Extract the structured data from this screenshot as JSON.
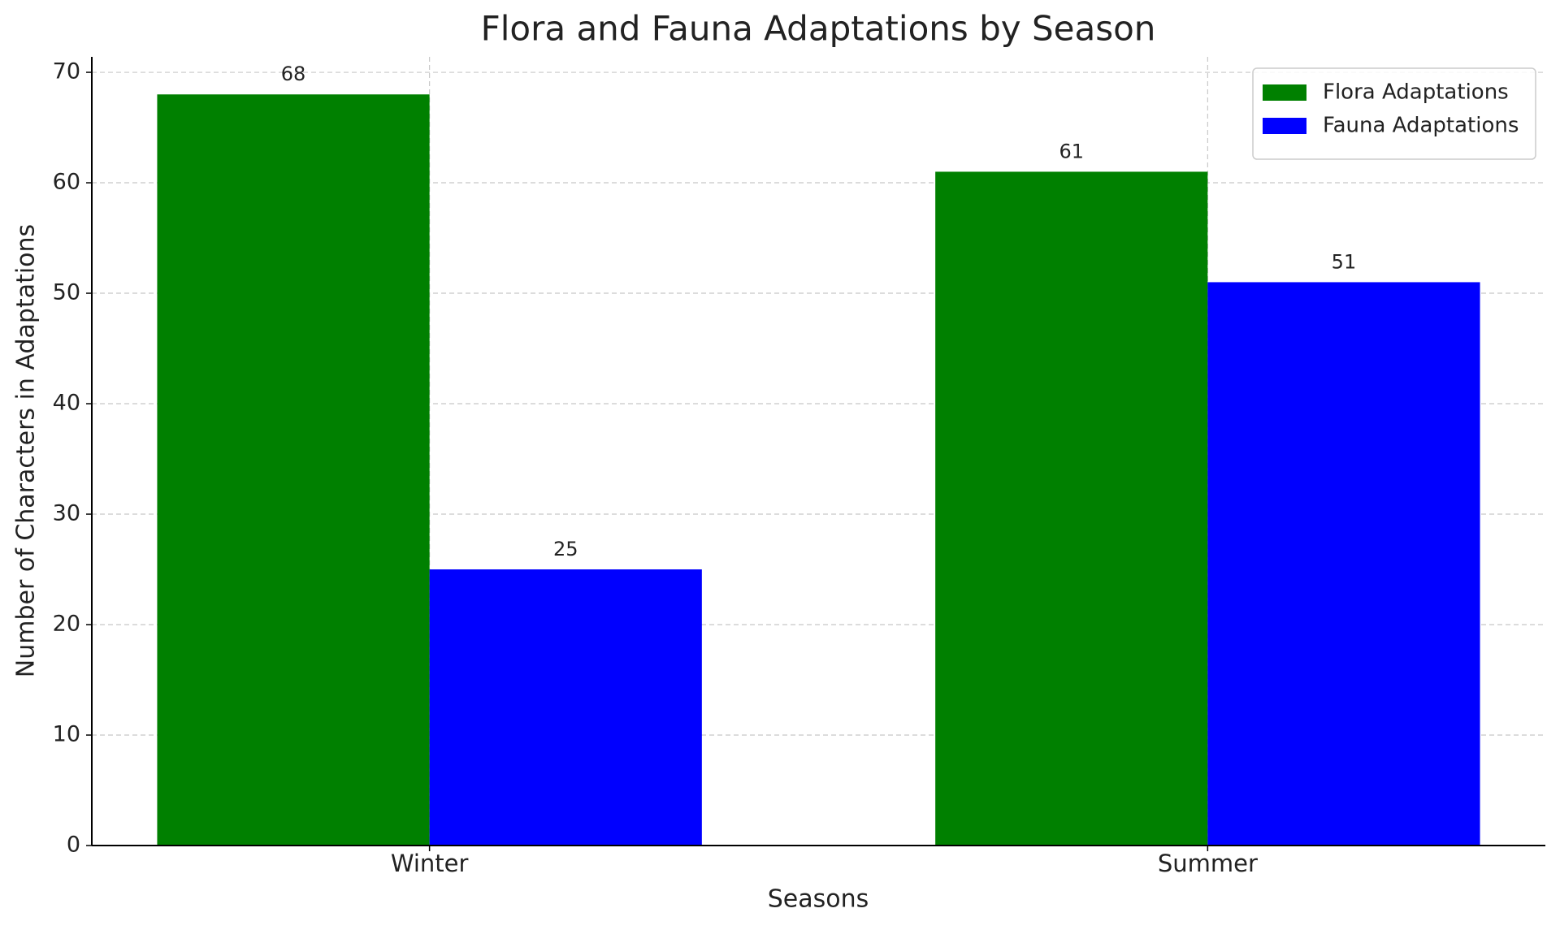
{
  "chart_data": {
    "type": "bar",
    "title": "Flora and Fauna Adaptations by Season",
    "x_label": "Seasons",
    "y_label": "Number of Characters in Adaptations",
    "categories": [
      "Winter",
      "Summer"
    ],
    "series": [
      {
        "name": "Flora Adaptations",
        "color": "#008000",
        "values": [
          68,
          61
        ]
      },
      {
        "name": "Fauna Adaptations",
        "color": "#0000ff",
        "values": [
          25,
          51
        ]
      }
    ],
    "ylim": [
      0,
      71.4
    ],
    "yticks": [
      0,
      10,
      20,
      30,
      40,
      50,
      60,
      70
    ],
    "grid": true,
    "legend": "upper right"
  }
}
